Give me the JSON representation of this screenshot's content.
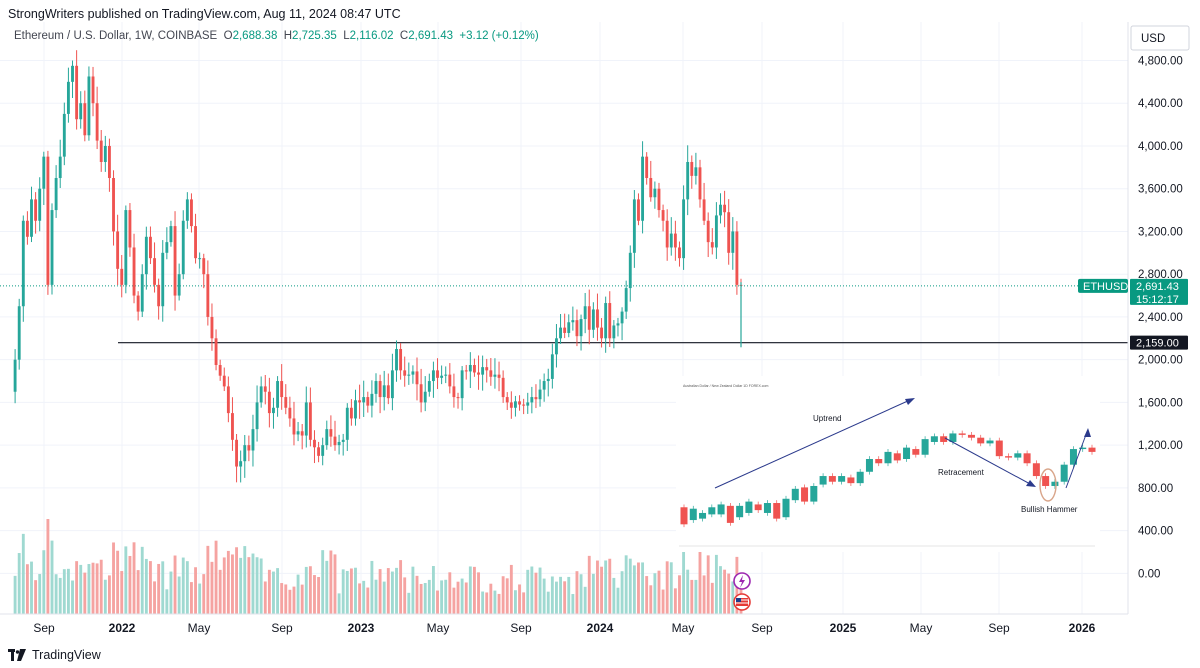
{
  "header": {
    "publisher": "StrongWriters published on TradingView.com, Aug 11, 2024 08:47 UTC",
    "symbol": "Ethereum / U.S. Dollar, 1W, COINBASE",
    "o_label": "O",
    "o_value": "2,688.38",
    "h_label": "H",
    "h_value": "2,725.35",
    "l_label": "L",
    "l_value": "2,116.02",
    "c_label": "C",
    "c_value": "2,691.43",
    "change": "+3.12 (+0.12%)"
  },
  "footer": {
    "brand": "TradingView"
  },
  "colors": {
    "up": "#26a69a",
    "down": "#ef5350",
    "vol_up": "#9fd9d1",
    "vol_down": "#f5a3a1",
    "last_price_bg": "#089981",
    "level_bg": "#131722"
  },
  "chart_data": {
    "type": "candlestick",
    "symbol": "ETHUSD",
    "currency": "USD",
    "y_axis": {
      "ticks": [
        "4,800.00",
        "4,400.00",
        "4,000.00",
        "3,600.00",
        "3,200.00",
        "2,800.00",
        "2,400.00",
        "2,000.00",
        "1,600.00",
        "1,200.00",
        "800.00",
        "400.00",
        "0.00"
      ],
      "tick_values": [
        4800,
        4400,
        4000,
        3600,
        3200,
        2800,
        2400,
        2000,
        1600,
        1200,
        800,
        400,
        0
      ],
      "range": [
        -380,
        5160
      ]
    },
    "x_axis": {
      "ticks": [
        "Sep",
        "2022",
        "May",
        "Sep",
        "2023",
        "May",
        "Sep",
        "2024",
        "May",
        "Sep",
        "2025",
        "May",
        "Sep",
        "2026"
      ],
      "bold": [
        "2022",
        "2023",
        "2024",
        "2025",
        "2026"
      ]
    },
    "last_price": {
      "label": "ETHUSD",
      "value": "2,691.43",
      "timer": "15:12:17",
      "price": 2691
    },
    "horizontal_level": {
      "value": "2,159.00",
      "price": 2159
    },
    "price_path": [
      1700,
      2000,
      2500,
      3300,
      3150,
      3500,
      3300,
      3600,
      3900,
      2700,
      3400,
      3700,
      3900,
      4300,
      4600,
      4750,
      4250,
      4400,
      4100,
      4650,
      4400,
      4050,
      3850,
      4000,
      3700,
      3200,
      2850,
      2700,
      3400,
      3050,
      2600,
      2450,
      2800,
      3150,
      2950,
      2700,
      2500,
      3000,
      3100,
      3250,
      2600,
      2800,
      3300,
      3500,
      3250,
      2950,
      2950,
      2800,
      2400,
      2200,
      1950,
      1850,
      1750,
      1500,
      1250,
      1000,
      1050,
      1200,
      1150,
      1350,
      1600,
      1750,
      1700,
      1500,
      1550,
      1800,
      1650,
      1550,
      1450,
      1300,
      1330,
      1290,
      1600,
      1250,
      1180,
      1100,
      1200,
      1350,
      1280,
      1200,
      1230,
      1250,
      1550,
      1450,
      1620,
      1600,
      1650,
      1570,
      1680,
      1800,
      1650,
      1760,
      1640,
      1900,
      2100,
      1900,
      1850,
      1860,
      1890,
      1770,
      1600,
      1700,
      1800,
      1900,
      1830,
      1850,
      1860,
      1750,
      1650,
      1640,
      1900,
      1890,
      1950,
      1880,
      1860,
      1930,
      1900,
      1840,
      1860,
      1830,
      1650,
      1600,
      1550,
      1610,
      1580,
      1570,
      1600,
      1650,
      1630,
      1720,
      1800,
      1820,
      2050,
      2200,
      2300,
      2250,
      2350,
      2370,
      2220,
      2380,
      2500,
      2280,
      2470,
      2300,
      2200,
      2530,
      2200,
      2320,
      2340,
      2450,
      2670,
      3000,
      3500,
      3300,
      3900,
      3700,
      3520,
      3600,
      3400,
      3300,
      3050,
      3180,
      3050,
      2950,
      3500,
      3850,
      3720,
      3800,
      3500,
      3300,
      3100,
      3050,
      3350,
      3450,
      3380,
      3000,
      3200,
      2700,
      2691
    ],
    "volume": {
      "note": "weekly volume bars (relative, teal = up week, red = down week)"
    },
    "inset": {
      "caption": "Australian Dollar / New Zealand Dollar 1D FOREX.com",
      "labels": {
        "uptrend": "Uptrend",
        "retracement": "Retracement",
        "hammer": "Bullish Hammer"
      },
      "candles": [
        [
          66,
          54
        ],
        [
          57,
          65
        ],
        [
          58,
          62
        ],
        [
          61,
          66
        ],
        [
          61,
          68
        ],
        [
          67,
          55
        ],
        [
          59,
          67
        ],
        [
          62,
          70
        ],
        [
          68,
          64
        ],
        [
          62,
          69
        ],
        [
          69,
          58
        ],
        [
          59,
          72
        ],
        [
          71,
          79
        ],
        [
          80,
          70
        ],
        [
          70,
          81
        ],
        [
          82,
          88
        ],
        [
          88,
          84
        ],
        [
          84,
          88
        ],
        [
          87,
          83
        ],
        [
          83,
          91
        ],
        [
          91,
          100
        ],
        [
          100,
          97
        ],
        [
          97,
          105
        ],
        [
          104,
          99
        ],
        [
          100,
          108
        ],
        [
          107,
          103
        ],
        [
          103,
          114
        ],
        [
          112,
          116
        ],
        [
          116,
          112
        ],
        [
          112,
          118
        ],
        [
          118,
          117
        ],
        [
          117,
          115
        ],
        [
          115,
          111
        ],
        [
          111,
          113
        ],
        [
          113,
          102
        ],
        [
          102,
          101
        ],
        [
          101,
          104
        ],
        [
          104,
          97
        ],
        [
          97,
          88
        ],
        [
          88,
          81
        ],
        [
          81,
          84
        ],
        [
          84,
          96
        ],
        [
          96,
          107
        ],
        [
          107,
          108
        ],
        [
          108,
          105
        ]
      ]
    }
  }
}
